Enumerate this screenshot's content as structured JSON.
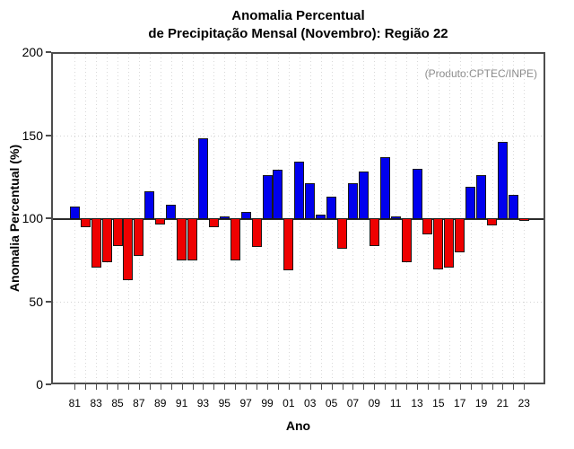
{
  "title": {
    "line1": "Anomalia Percentual",
    "line2": "de Precipitação Mensal (Novembro): Região 22"
  },
  "annotation": {
    "produto": "(Produto:CPTEC/INPE)"
  },
  "axes": {
    "y_label": "Anomalia Percentual (%)",
    "x_label": "Ano",
    "y_tick_labels": [
      "0",
      "50",
      "100",
      "150",
      "200"
    ],
    "y_tick_values": [
      0,
      50,
      100,
      150,
      200
    ],
    "x_tick_labels": [
      "81",
      "83",
      "85",
      "87",
      "89",
      "91",
      "93",
      "95",
      "97",
      "99",
      "01",
      "03",
      "05",
      "07",
      "09",
      "11",
      "13",
      "15",
      "17",
      "19",
      "21",
      "23"
    ]
  },
  "colors": {
    "above_normal": "#0000ee",
    "below_normal": "#ee0000",
    "bar_border": "#1a1a1a",
    "annotation_gray": "#8c8c8c"
  },
  "chart_data": {
    "type": "bar",
    "title": "Anomalia Percentual de Precipitação Mensal (Novembro): Região 22",
    "xlabel": "Ano",
    "ylabel": "Anomalia Percentual (%)",
    "ylim": [
      0,
      200
    ],
    "baseline": 100,
    "grid": "dotted vertical line at every year; dotted horizontal lines at 50 and 150; solid dark line at 100",
    "legend": "none",
    "color_rule": "blue if value >= 100 else red",
    "grid_h_values": [
      50,
      150
    ],
    "years": [
      1981,
      1982,
      1983,
      1984,
      1985,
      1986,
      1987,
      1988,
      1989,
      1990,
      1991,
      1992,
      1993,
      1994,
      1995,
      1996,
      1997,
      1998,
      1999,
      2000,
      2001,
      2002,
      2003,
      2004,
      2005,
      2006,
      2007,
      2008,
      2009,
      2010,
      2011,
      2012,
      2013,
      2014,
      2015,
      2016,
      2017,
      2018,
      2019,
      2020,
      2021,
      2022,
      2023
    ],
    "values": [
      107,
      95,
      71,
      74,
      84,
      63,
      78,
      116,
      97,
      108,
      75,
      75,
      148,
      95,
      101,
      75,
      104,
      83,
      126,
      129,
      69,
      134,
      121,
      102,
      113,
      82,
      121,
      128,
      84,
      137,
      101,
      74,
      130,
      91,
      70,
      71,
      80,
      119,
      126,
      96,
      146,
      114,
      99
    ]
  }
}
